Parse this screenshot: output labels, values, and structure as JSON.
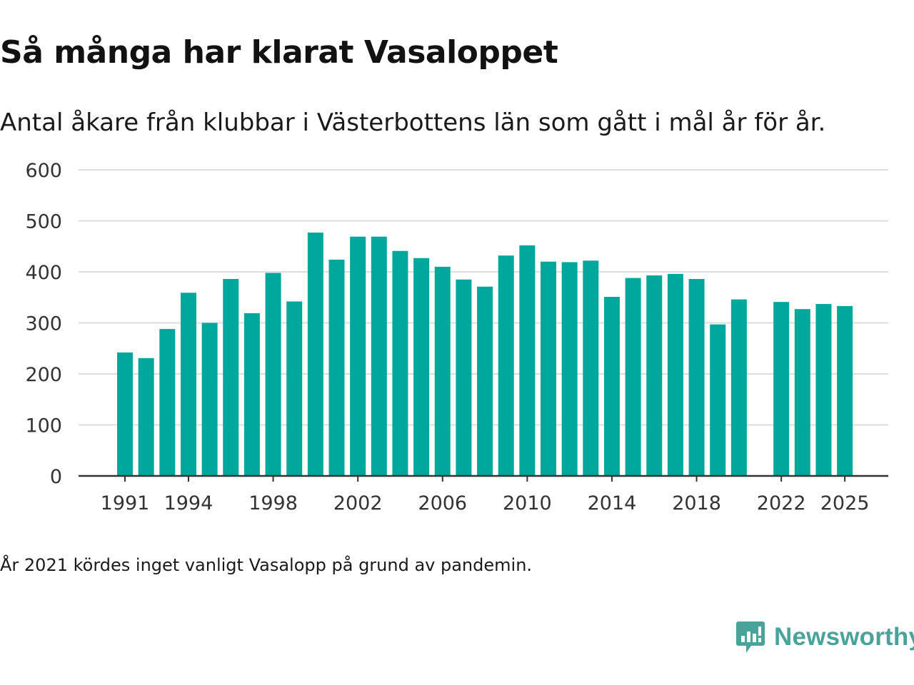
{
  "title": "Så många har klarat Vasaloppet",
  "subtitle": "Antal åkare från klubbar i Västerbottens län som gått i mål år för år.",
  "note": "År 2021 kördes inget vanligt Vasalopp på grund av pandemin.",
  "brand": {
    "name": "Newsworthy",
    "icon": "newsworthy-logo-icon",
    "color": "#4aa39a"
  },
  "colors": {
    "bar": "#00a79d",
    "grid": "#dddddd",
    "axis": "#333333"
  },
  "chart_data": {
    "type": "bar",
    "title": "Så många har klarat Vasaloppet",
    "xlabel": "",
    "ylabel": "",
    "ylim": [
      0,
      600
    ],
    "yticks": [
      0,
      100,
      200,
      300,
      400,
      500,
      600
    ],
    "xticks": [
      1991,
      1994,
      1998,
      2002,
      2006,
      2010,
      2014,
      2018,
      2022,
      2025
    ],
    "grid": true,
    "legend": "none",
    "categories": [
      1991,
      1992,
      1993,
      1994,
      1995,
      1996,
      1997,
      1998,
      1999,
      2000,
      2001,
      2002,
      2003,
      2004,
      2005,
      2006,
      2007,
      2008,
      2009,
      2010,
      2011,
      2012,
      2013,
      2014,
      2015,
      2016,
      2017,
      2018,
      2019,
      2020,
      2022,
      2023,
      2024,
      2025
    ],
    "values": [
      242,
      231,
      288,
      359,
      300,
      386,
      319,
      398,
      342,
      477,
      424,
      469,
      469,
      441,
      427,
      410,
      385,
      371,
      432,
      452,
      420,
      419,
      422,
      351,
      388,
      393,
      396,
      386,
      297,
      346,
      341,
      327,
      337,
      333
    ]
  }
}
